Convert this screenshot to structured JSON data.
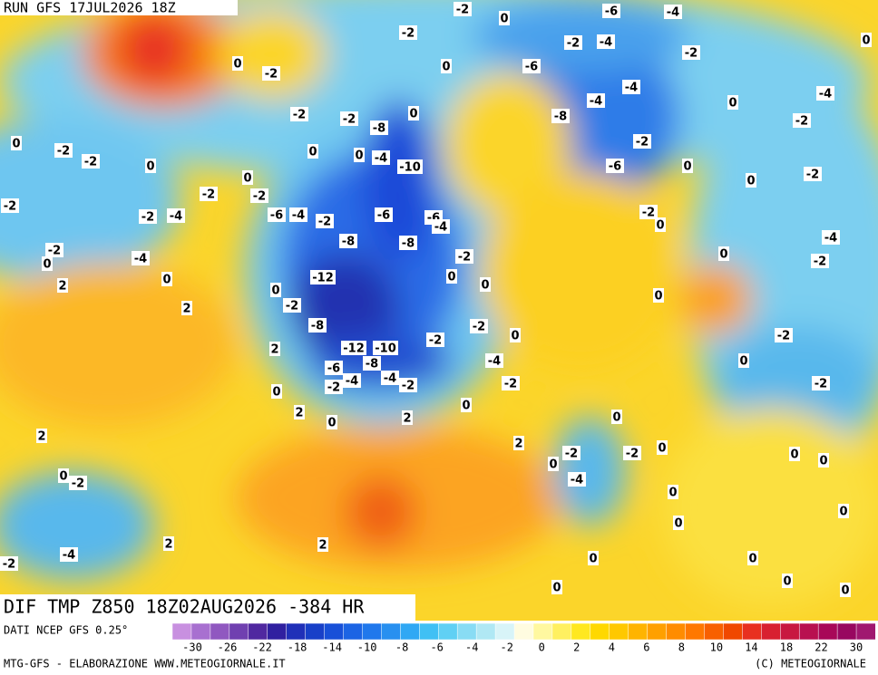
{
  "header": {
    "run": "RUN GFS 17JUL2026 18Z",
    "field": "DIF TMP Z850 18Z02AUG2026 -384 HR"
  },
  "footer": {
    "source": "DATI NCEP GFS 0.25°",
    "credit": "MTG-GFS - ELABORAZIONE WWW.METEOGIORNALE.IT",
    "copyright": "(C) METEOGIORNALE"
  },
  "colorbar": {
    "colors": [
      "#c890e0",
      "#a870d0",
      "#9058c0",
      "#7040b0",
      "#5028a0",
      "#3020a0",
      "#2030b8",
      "#1840c8",
      "#1850d8",
      "#1c64e4",
      "#2078ec",
      "#2890f0",
      "#30a8f4",
      "#40c0f4",
      "#60d0f4",
      "#88dcf4",
      "#b0e8f4",
      "#d8f4f8",
      "#fffce0",
      "#fff8a0",
      "#fff060",
      "#ffe820",
      "#ffd800",
      "#ffc800",
      "#ffb400",
      "#ffa000",
      "#ff8c00",
      "#ff7800",
      "#f86000",
      "#f04800",
      "#e83020",
      "#d82030",
      "#c81840",
      "#b81050",
      "#a80858",
      "#980860",
      "#a01870"
    ],
    "ticks": [
      -30,
      -26,
      -22,
      -18,
      -14,
      -10,
      -8,
      -6,
      -4,
      -2,
      0,
      2,
      4,
      6,
      8,
      10,
      14,
      18,
      22,
      30
    ]
  },
  "contour_labels": [
    -2,
    0,
    -6,
    -4,
    -2,
    -2,
    -4,
    -2,
    0,
    -2,
    0,
    -6,
    -4,
    -4,
    0,
    -4,
    -2,
    -2,
    -8,
    0,
    -8,
    -2,
    0,
    -2,
    -2,
    0,
    0,
    0,
    -4,
    -10,
    -2,
    -6,
    0,
    0,
    -2,
    -2,
    0,
    -2,
    -2,
    -2,
    -4,
    -6,
    -4,
    -2,
    -6,
    -6,
    -4,
    -2,
    -8,
    -8,
    -4,
    -2,
    0,
    -4,
    0,
    2,
    -2,
    -12,
    0,
    0,
    -2,
    0,
    0,
    -2,
    2,
    0,
    -8,
    -2,
    -2,
    0,
    2,
    -12,
    -10,
    -2,
    -4,
    0,
    -6,
    -8,
    -4,
    -4,
    -2,
    -2,
    -2,
    -2,
    0,
    0,
    2,
    0,
    2,
    0,
    2,
    2,
    -2,
    -2,
    0,
    0,
    0,
    0,
    0,
    -2,
    -4,
    0,
    0,
    0,
    2,
    2,
    -4,
    -2,
    0,
    0,
    0,
    0,
    0,
    0,
    0
  ]
}
